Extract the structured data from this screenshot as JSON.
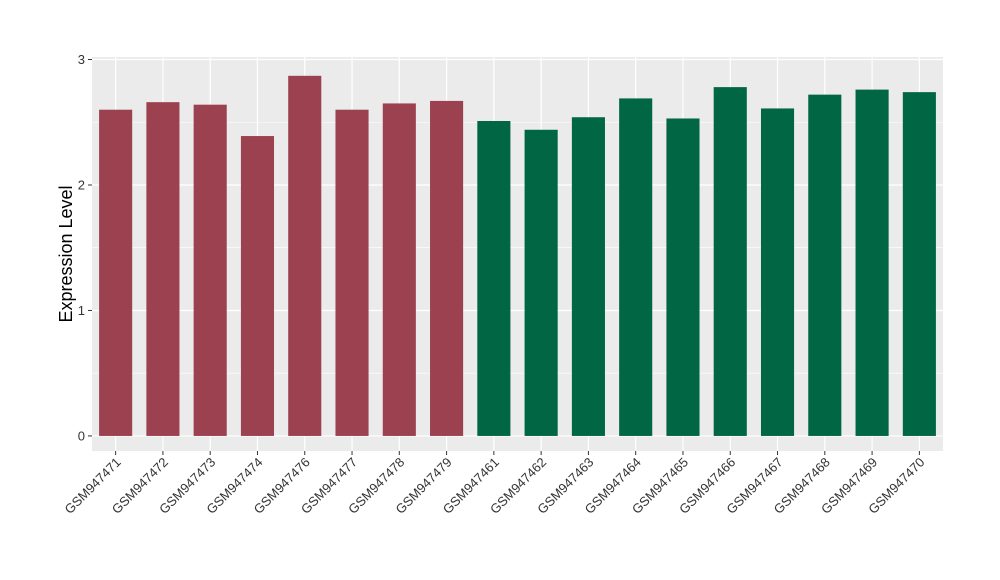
{
  "chart_data": {
    "type": "bar",
    "title": "",
    "xlabel": "",
    "ylabel": "Expression Level",
    "ylim": [
      -0.12,
      3.02
    ],
    "yticks": [
      0,
      1,
      2,
      3
    ],
    "grid": true,
    "legend": "none",
    "categories": [
      "GSM947471",
      "GSM947472",
      "GSM947473",
      "GSM947474",
      "GSM947476",
      "GSM947477",
      "GSM947478",
      "GSM947479",
      "GSM947461",
      "GSM947462",
      "GSM947463",
      "GSM947464",
      "GSM947465",
      "GSM947466",
      "GSM947467",
      "GSM947468",
      "GSM947469",
      "GSM947470"
    ],
    "values": [
      2.6,
      2.66,
      2.64,
      2.39,
      2.87,
      2.6,
      2.65,
      2.67,
      2.51,
      2.44,
      2.54,
      2.69,
      2.53,
      2.78,
      2.61,
      2.72,
      2.76,
      2.74
    ],
    "group_colors": [
      "#9b414f",
      "#9b414f",
      "#9b414f",
      "#9b414f",
      "#9b414f",
      "#9b414f",
      "#9b414f",
      "#9b414f",
      "#006643",
      "#006643",
      "#006643",
      "#006643",
      "#006643",
      "#006643",
      "#006643",
      "#006643",
      "#006643",
      "#006643"
    ],
    "panel_background": "#ebebeb",
    "grid_color": "#ffffff"
  }
}
